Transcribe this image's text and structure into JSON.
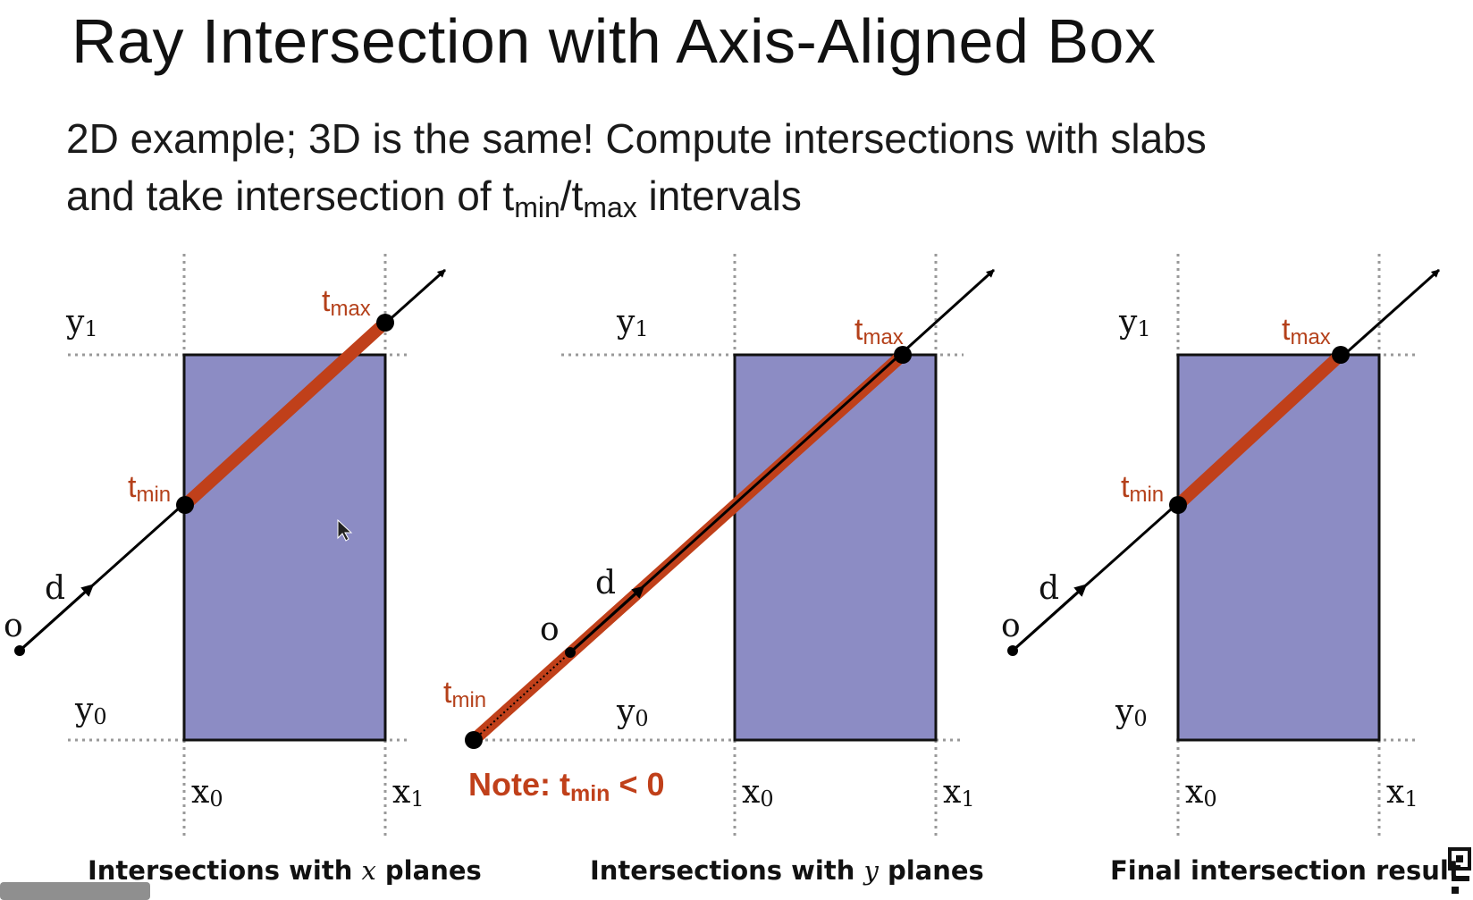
{
  "title": "Ray Intersection with Axis-Aligned Box",
  "subtitle": {
    "line1": "2D example; 3D is the same!  Compute intersections with slabs",
    "line2_prefix": "and take intersection of t",
    "line2_min_sub": "min",
    "line2_slash": "/t",
    "line2_max_sub": "max",
    "line2_suffix": " intervals"
  },
  "colors": {
    "box_fill": "#8c8cc4",
    "segment": "#c0401a",
    "label_accent": "#b4401a",
    "ray": "#000000",
    "plane_line": "#999999"
  },
  "panels": [
    {
      "caption_prefix": "Intersections with ",
      "caption_var": "x",
      "caption_suffix": " planes",
      "labels": {
        "y1": "y",
        "y1_sub": "1",
        "y0": "y",
        "y0_sub": "0",
        "x0": "x",
        "x0_sub": "0",
        "x1": "x",
        "x1_sub": "1",
        "o": "o",
        "d": "d",
        "tmin": "t",
        "tmin_sub": "min",
        "tmax": "t",
        "tmax_sub": "max"
      }
    },
    {
      "caption_prefix": "Intersections with ",
      "caption_var": "y",
      "caption_suffix": " planes",
      "labels": {
        "y1": "y",
        "y1_sub": "1",
        "y0": "y",
        "y0_sub": "0",
        "x0": "x",
        "x0_sub": "0",
        "x1": "x",
        "x1_sub": "1",
        "o": "o",
        "d": "d",
        "tmin": "t",
        "tmin_sub": "min",
        "tmax": "t",
        "tmax_sub": "max"
      },
      "note": {
        "prefix": "Note:  t",
        "sub": "min",
        "suffix": " < 0"
      }
    },
    {
      "caption_prefix": "Final intersection result",
      "caption_var": "",
      "caption_suffix": "",
      "labels": {
        "y1": "y",
        "y1_sub": "1",
        "y0": "y",
        "y0_sub": "0",
        "x0": "x",
        "x0_sub": "0",
        "x1": "x",
        "x1_sub": "1",
        "o": "o",
        "d": "d",
        "tmin": "t",
        "tmin_sub": "min",
        "tmax": "t",
        "tmax_sub": "max"
      }
    }
  ]
}
